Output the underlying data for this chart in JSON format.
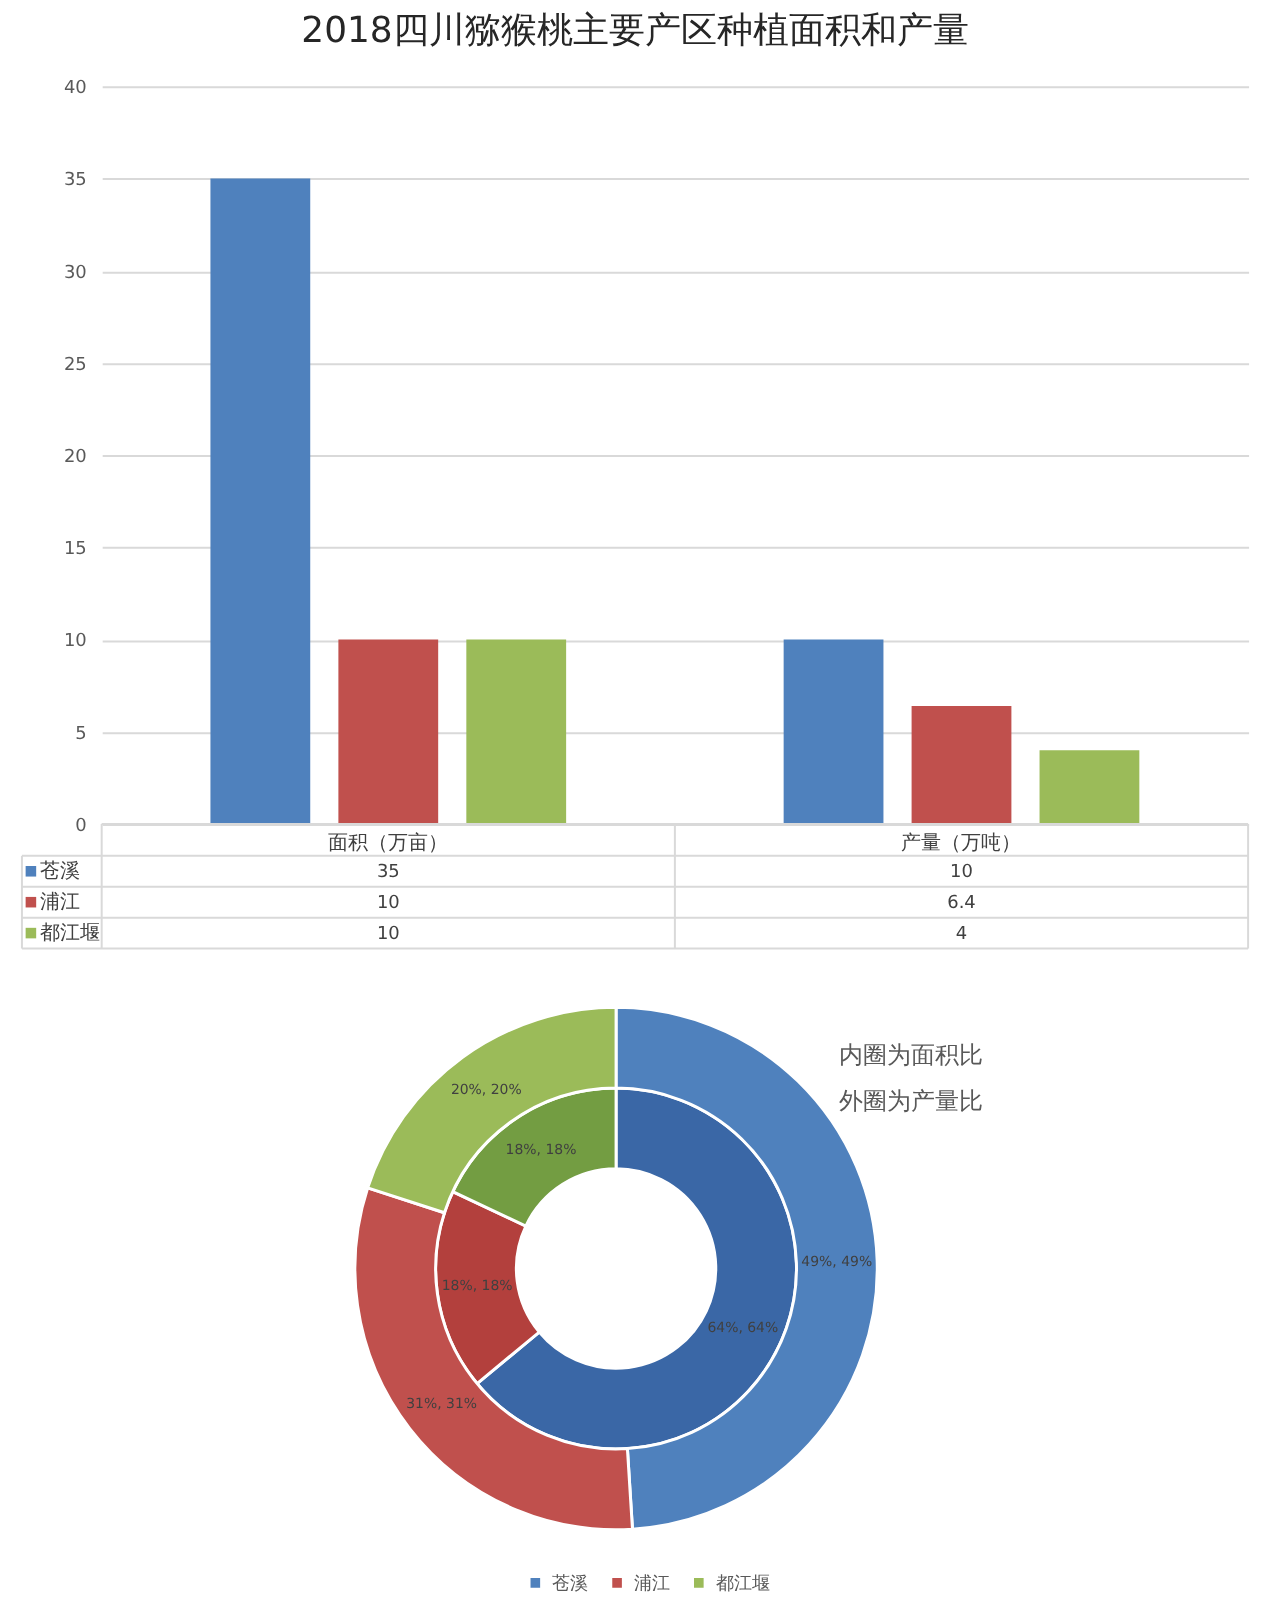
{
  "chart_data": [
    {
      "type": "bar",
      "title": "2018四川猕猴桃主要产区种植面积和产量",
      "categories": [
        "面积（万亩）",
        "产量（万吨）"
      ],
      "series": [
        {
          "name": "苍溪",
          "color": "#4f81bd",
          "values": [
            35,
            10
          ]
        },
        {
          "name": "浦江",
          "color": "#c0504d",
          "values": [
            10,
            6.4
          ]
        },
        {
          "name": "都江堰",
          "color": "#9bbb59",
          "values": [
            10,
            4
          ]
        }
      ],
      "ylim": [
        0,
        40
      ],
      "yticks": [
        0,
        5,
        10,
        15,
        20,
        25,
        30,
        35,
        40
      ],
      "grid": "y",
      "data_labels": true,
      "legend": "bottom left"
    },
    {
      "type": "donut",
      "categories": [
        "苍溪",
        "浦江",
        "都江堰"
      ],
      "series": [
        {
          "colors": [
            "#3a67a6",
            "#b3403d",
            "#739d42"
          ],
          "values": [
            64,
            18,
            18
          ],
          "value_labels": [
            "64%, 64%",
            "18%, 18%",
            "18%, 18%"
          ]
        },
        {
          "colors": [
            "#4f81bd",
            "#c0504d",
            "#9bbb59"
          ],
          "values": [
            49,
            31,
            20
          ],
          "value_labels": [
            "49%, 49%",
            "31%, 31%",
            "20%, 20%"
          ]
        }
      ],
      "annotations": [
        "内圈为面积比",
        "外圈为产量比"
      ],
      "legend": "bottom"
    }
  ]
}
